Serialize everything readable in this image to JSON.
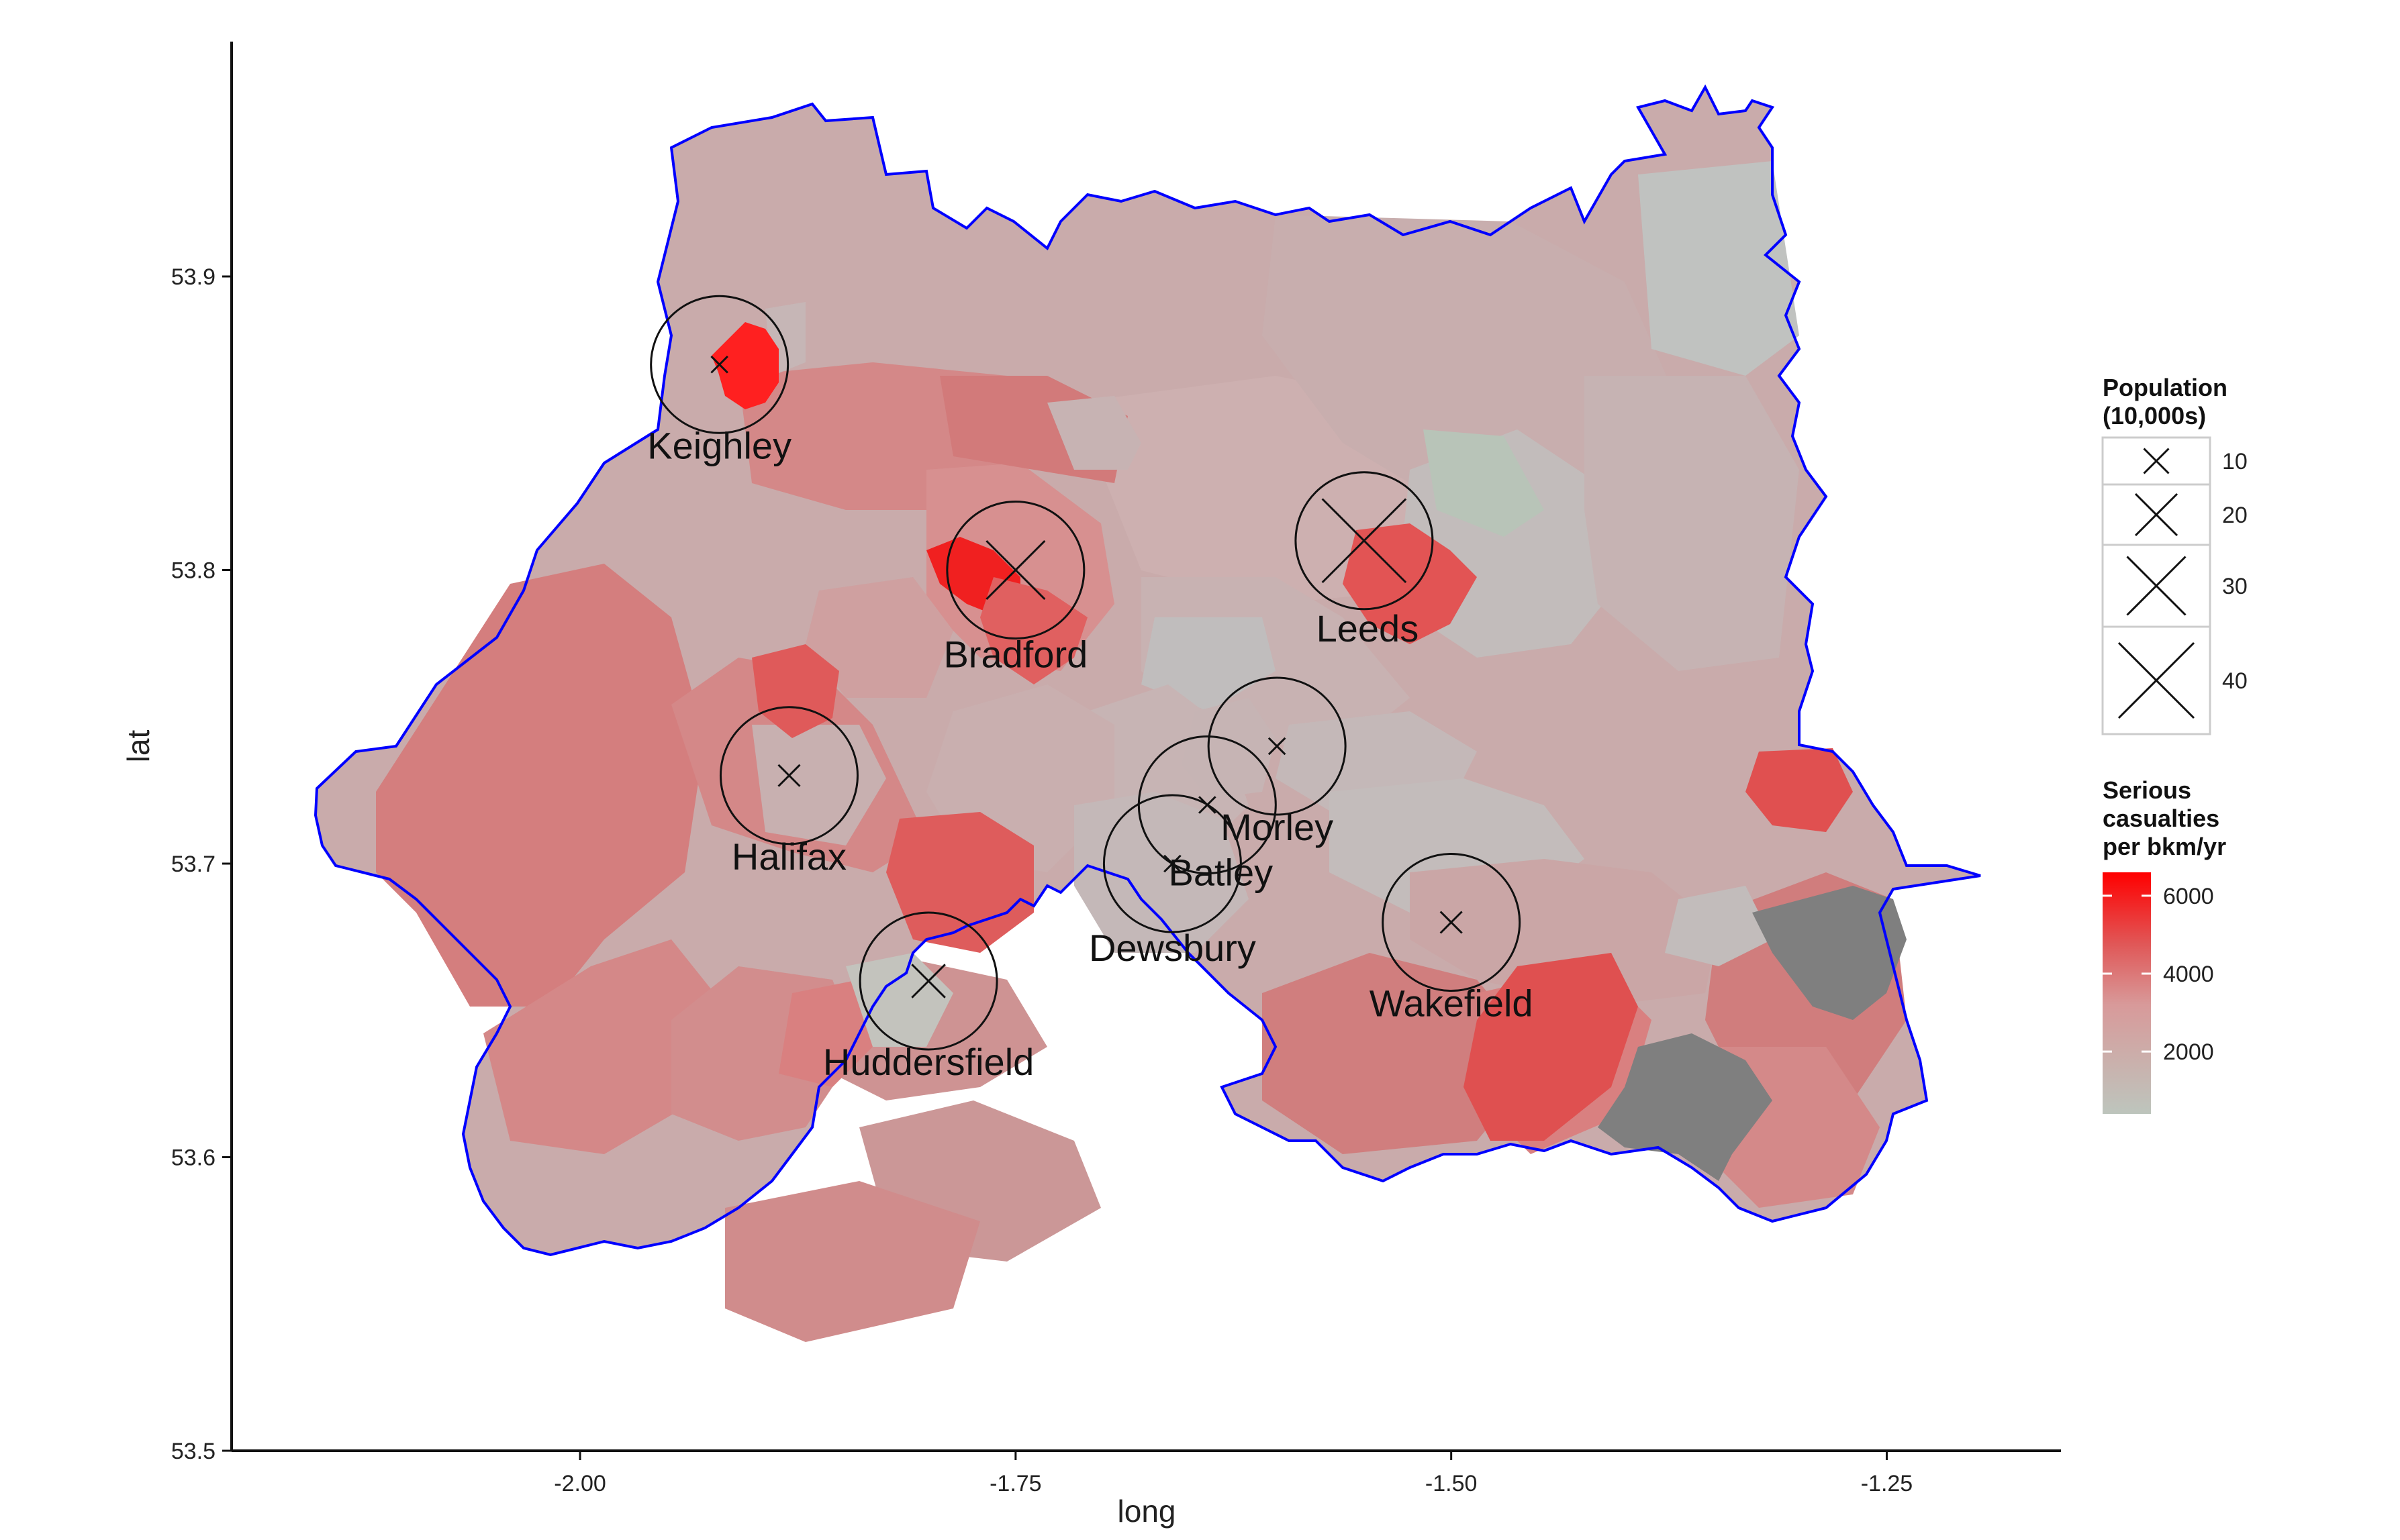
{
  "chart_data": {
    "type": "map",
    "xlabel": "long",
    "ylabel": "lat",
    "xlim": [
      -2.2,
      -1.15
    ],
    "ylim": [
      53.5,
      53.98
    ],
    "x_ticks": [
      -2.0,
      -1.75,
      -1.5,
      -1.25
    ],
    "x_tick_labels": [
      "-2.00",
      "-1.75",
      "-1.50",
      "-1.25"
    ],
    "y_ticks": [
      53.5,
      53.6,
      53.7,
      53.8,
      53.9
    ],
    "y_tick_labels": [
      "53.5",
      "53.6",
      "53.7",
      "53.8",
      "53.9"
    ],
    "grid": false,
    "boundary_color": "#0000ff",
    "fill_scale": {
      "low_color": "#bdc5bd",
      "mid_color": "#d87070",
      "high_color": "#ff0000",
      "missing_color": "#7f7f7f"
    },
    "cities": [
      {
        "name": "Keighley",
        "long": -1.92,
        "lat": 53.87,
        "population_10k": 5
      },
      {
        "name": "Bradford",
        "long": -1.75,
        "lat": 53.8,
        "population_10k": 30
      },
      {
        "name": "Leeds",
        "long": -1.55,
        "lat": 53.81,
        "population_10k": 45
      },
      {
        "name": "Halifax",
        "long": -1.88,
        "lat": 53.73,
        "population_10k": 8
      },
      {
        "name": "Morley",
        "long": -1.6,
        "lat": 53.74,
        "population_10k": 5
      },
      {
        "name": "Batley",
        "long": -1.64,
        "lat": 53.72,
        "population_10k": 5
      },
      {
        "name": "Dewsbury",
        "long": -1.66,
        "lat": 53.7,
        "population_10k": 5
      },
      {
        "name": "Huddersfield",
        "long": -1.8,
        "lat": 53.66,
        "population_10k": 15
      },
      {
        "name": "Wakefield",
        "long": -1.5,
        "lat": 53.68,
        "population_10k": 8
      }
    ],
    "legend_population": {
      "title_line1": "Population",
      "title_line2": "(10,000s)",
      "entries": [
        "10",
        "20",
        "30",
        "40"
      ]
    },
    "legend_casualties": {
      "title_line1": "Serious",
      "title_line2": "casualties",
      "title_line3": "per bkm/yr",
      "ticks": [
        6000,
        4000,
        2000
      ],
      "tick_labels": [
        "6000",
        "4000",
        "2000"
      ],
      "range": [
        400,
        6600
      ]
    }
  }
}
